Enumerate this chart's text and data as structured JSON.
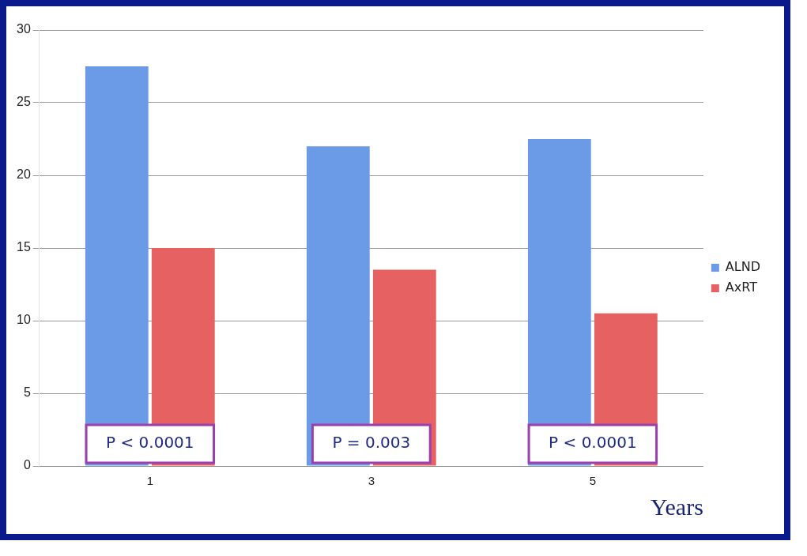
{
  "chart_data": {
    "type": "bar",
    "categories": [
      "1",
      "3",
      "5"
    ],
    "xlabel": "Years",
    "series": [
      {
        "name": "ALND",
        "color": "#6b9be6",
        "values": [
          27.5,
          22,
          22.5
        ]
      },
      {
        "name": "AxRT",
        "color": "#e66262",
        "values": [
          15,
          13.5,
          10.5
        ]
      }
    ],
    "ylim": [
      0,
      30
    ],
    "yticks": [
      0,
      5,
      10,
      15,
      20,
      25,
      30
    ],
    "grid": "y",
    "legend": "right",
    "annotations": [
      {
        "text": "P < 0.0001",
        "x": "1"
      },
      {
        "text": "P = 0.003",
        "x": "3"
      },
      {
        "text": "P < 0.0001",
        "x": "5"
      }
    ]
  }
}
